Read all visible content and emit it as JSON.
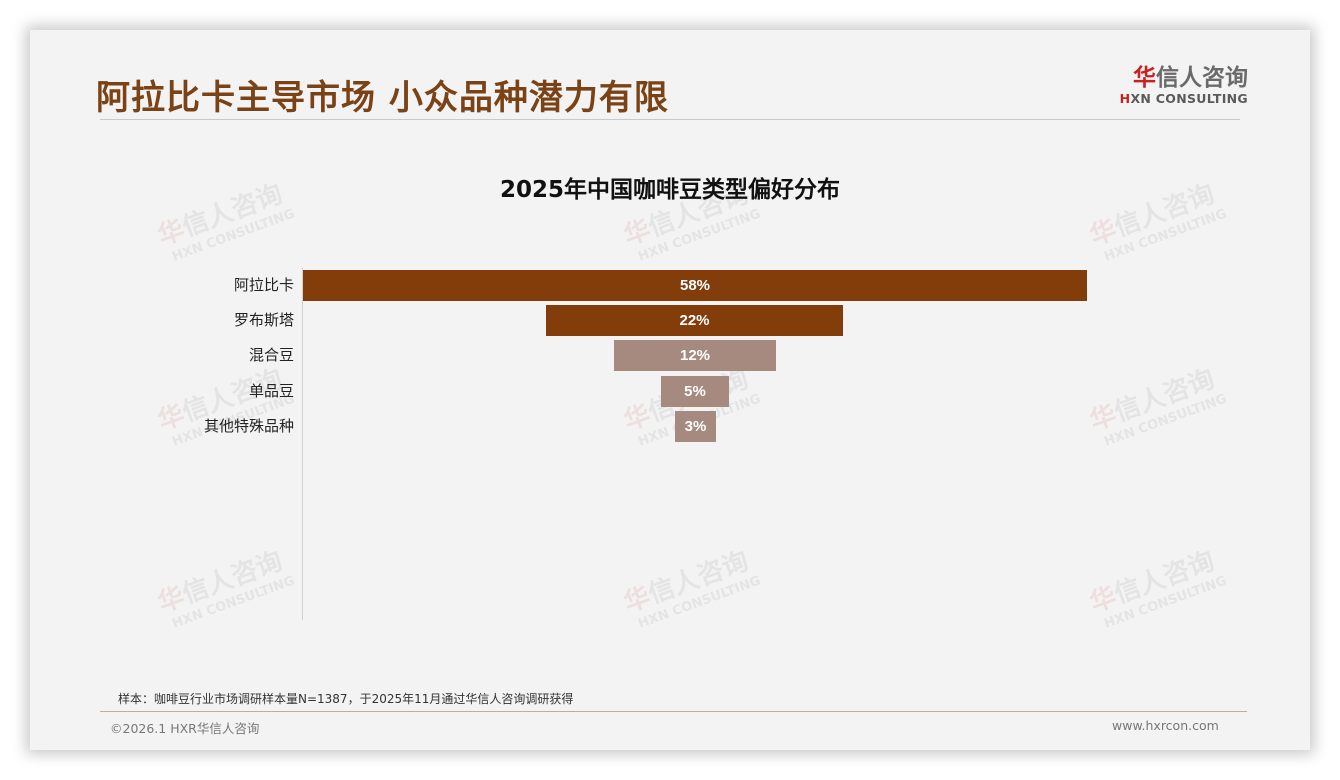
{
  "header": {
    "title": "阿拉比卡主导市场 小众品种潜力有限",
    "logo": {
      "cn_first": "华",
      "cn_rest": "信人咨询",
      "en_first": "H",
      "en_rest": "XN CONSULTING"
    }
  },
  "watermark": {
    "cn_first": "华",
    "cn_rest": "信人咨询",
    "en": "HXN CONSULTING"
  },
  "colors": {
    "title": "#7a4215",
    "bar_dark": "#833d0b",
    "bar_light": "#a78a7f",
    "footer_rule": "#c8ab94",
    "logo_red": "#c8211f"
  },
  "chart_data": {
    "type": "bar",
    "subtype": "funnel (centered horizontal bars)",
    "title": "2025年中国咖啡豆类型偏好分布",
    "categories": [
      "阿拉比卡",
      "罗布斯塔",
      "混合豆",
      "单品豆",
      "其他特殊品种"
    ],
    "values": [
      58,
      22,
      12,
      5,
      3
    ],
    "labels": [
      "58%",
      "22%",
      "12%",
      "5%",
      "3%"
    ],
    "unit": "%",
    "bar_colors": [
      "#833d0b",
      "#833d0b",
      "#a78a7f",
      "#a78a7f",
      "#a78a7f"
    ],
    "xlabel": "",
    "ylabel": "",
    "grid": false,
    "legend": false
  },
  "footer": {
    "note": "样本：咖啡豆行业市场调研样本量N=1387，于2025年11月通过华信人咨询调研获得",
    "copyright": "©2026.1 HXR华信人咨询",
    "website": "www.hxrcon.com"
  }
}
